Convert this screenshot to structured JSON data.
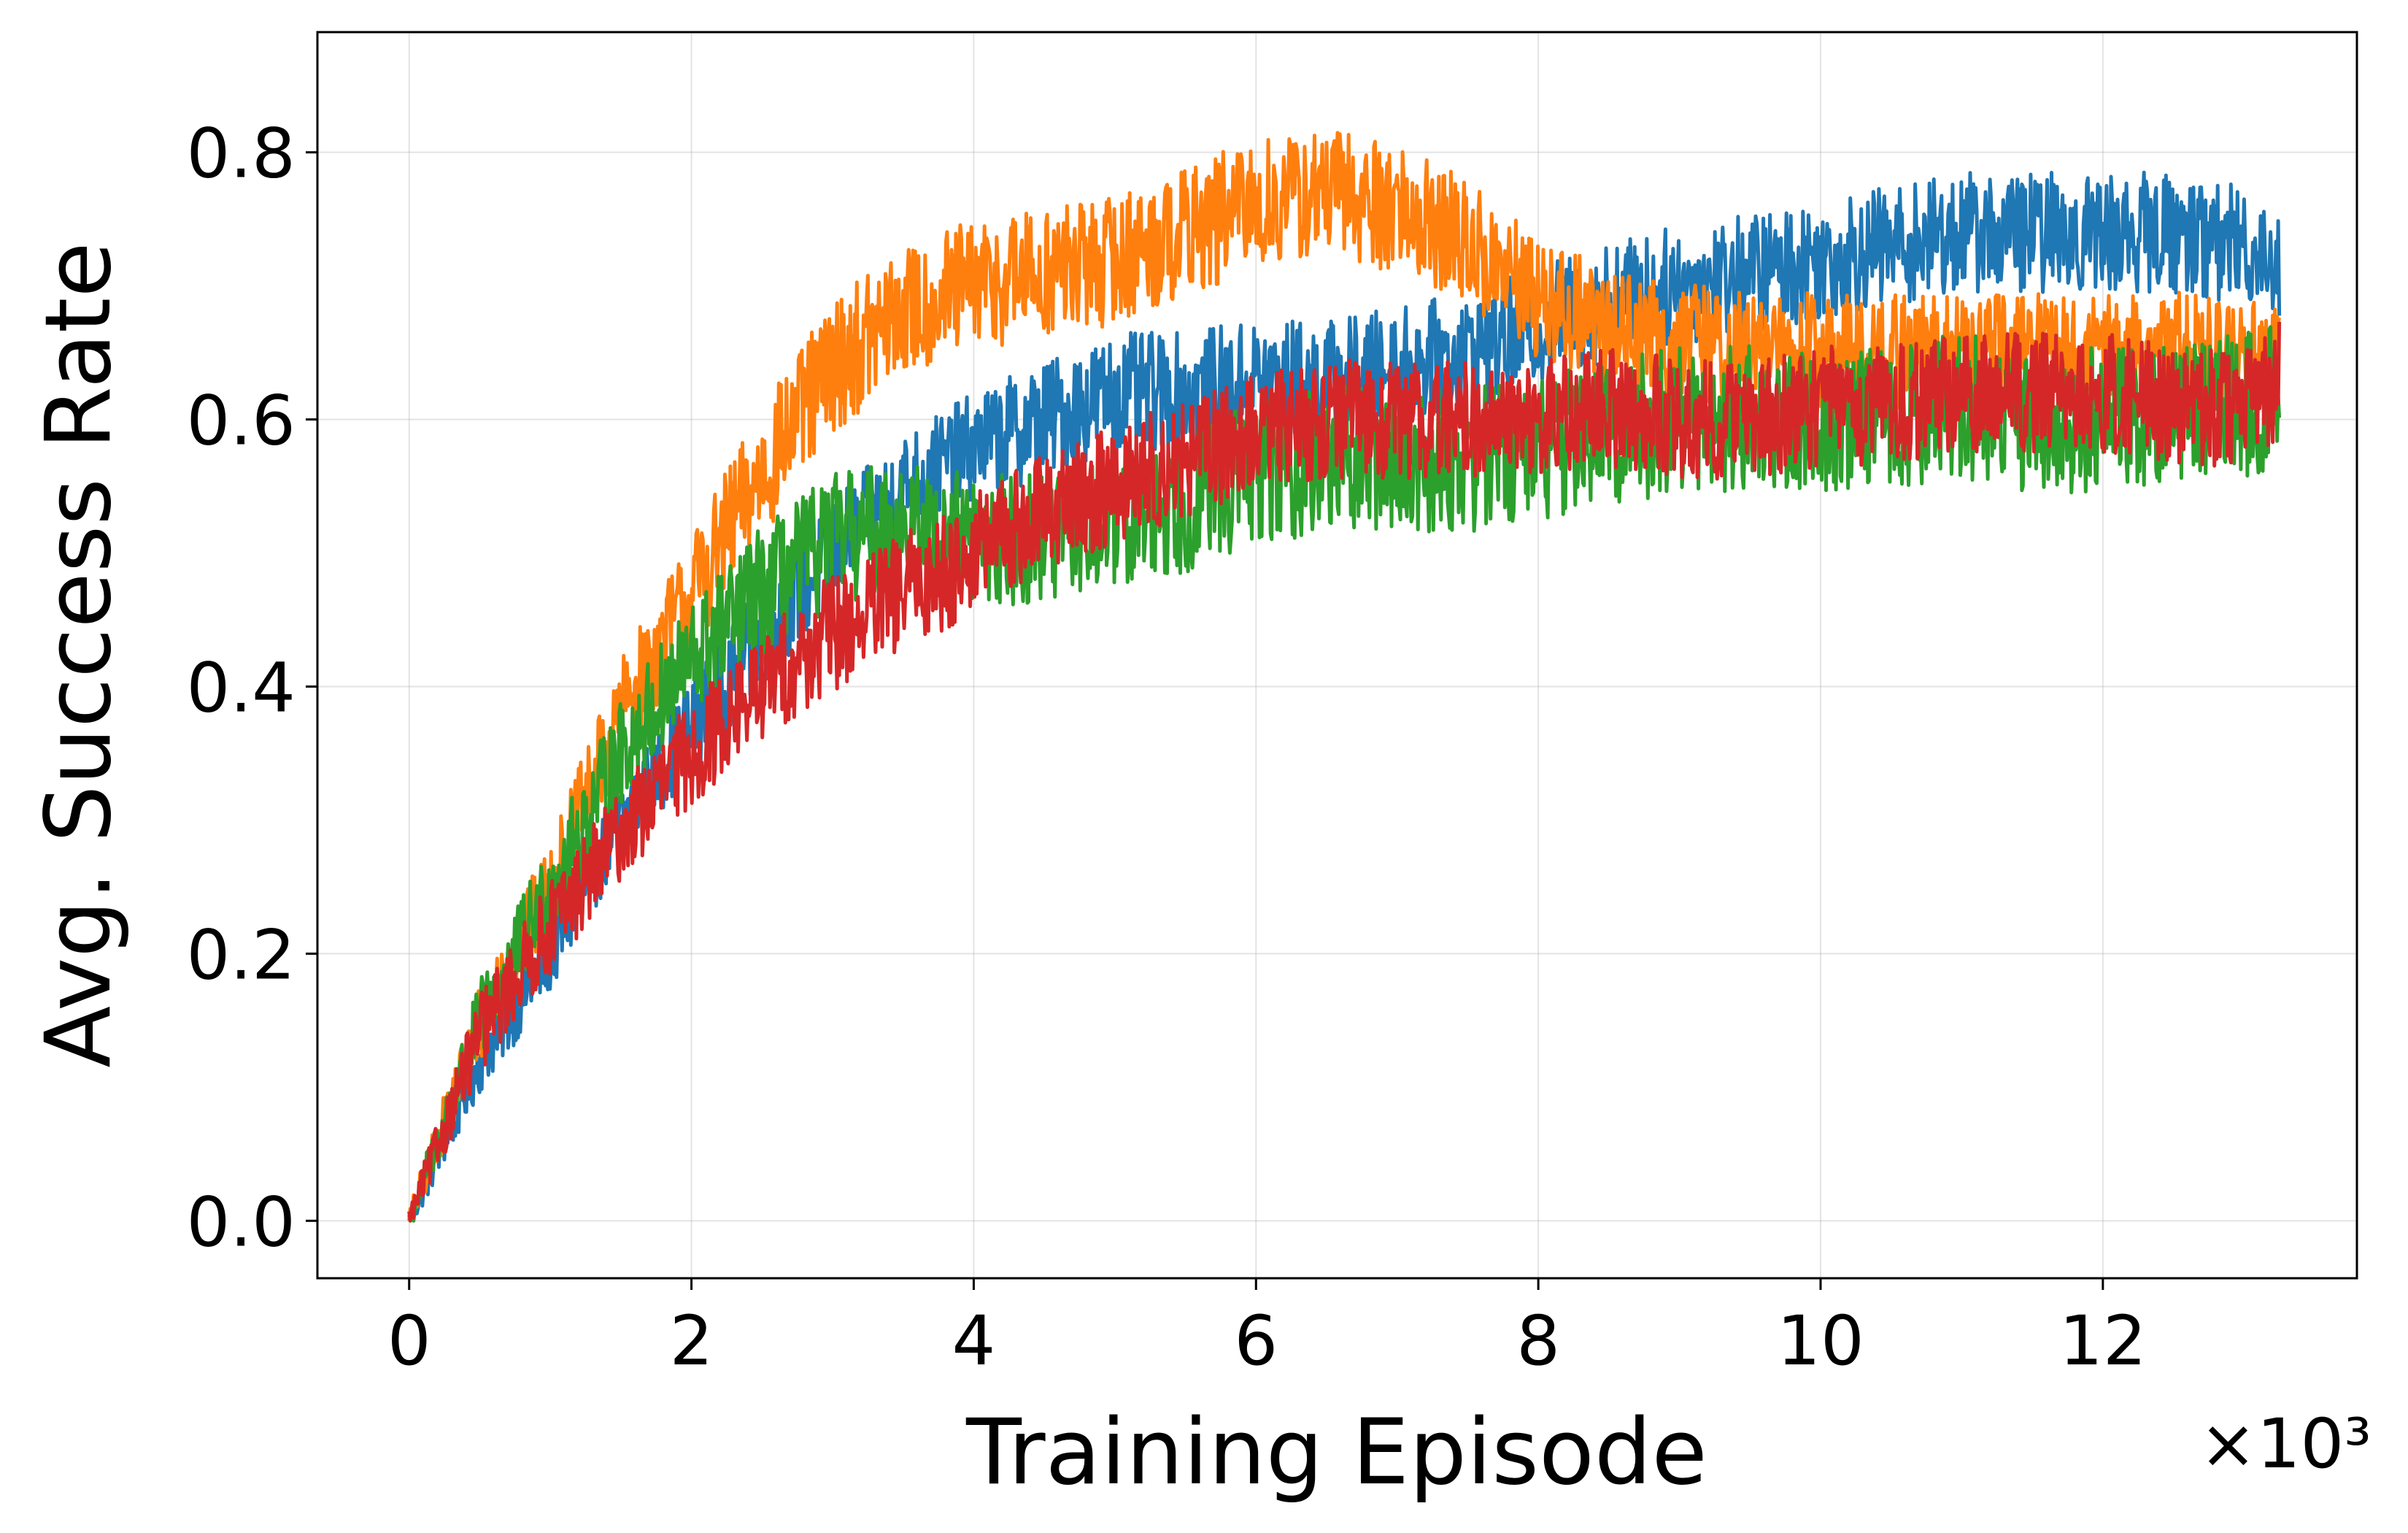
{
  "chart_data": {
    "type": "line",
    "xlabel": "Training Episode",
    "ylabel": "Avg. Success Rate",
    "x_offset_label": "×10³",
    "xlim": [
      -0.65,
      13.8
    ],
    "ylim": [
      -0.043,
      0.89
    ],
    "xticks": [
      0,
      2,
      4,
      6,
      8,
      10,
      12
    ],
    "xtick_labels": [
      "0",
      "2",
      "4",
      "6",
      "8",
      "10",
      "12"
    ],
    "yticks": [
      0.0,
      0.2,
      0.4,
      0.6,
      0.8
    ],
    "ytick_labels": [
      "0.0",
      "0.2",
      "0.4",
      "0.6",
      "0.8"
    ],
    "grid": true,
    "legend": "none",
    "series": [
      {
        "color": "#1f77b4",
        "x": [
          0,
          0.5,
          1,
          1.5,
          2,
          2.5,
          3,
          3.5,
          4,
          4.5,
          5,
          5.5,
          6,
          6.5,
          7,
          7.5,
          8,
          8.5,
          9,
          9.5,
          10,
          10.5,
          11,
          11.5,
          12,
          12.5,
          13,
          13.25
        ],
        "y": [
          0.0,
          0.12,
          0.2,
          0.3,
          0.37,
          0.44,
          0.5,
          0.55,
          0.58,
          0.6,
          0.62,
          0.62,
          0.63,
          0.63,
          0.64,
          0.65,
          0.67,
          0.69,
          0.7,
          0.71,
          0.72,
          0.73,
          0.74,
          0.74,
          0.74,
          0.74,
          0.73,
          0.72
        ],
        "amp": [
          0.01,
          0.025,
          0.03,
          0.03,
          0.035,
          0.04,
          0.04,
          0.04,
          0.04,
          0.045,
          0.045,
          0.045,
          0.045,
          0.045,
          0.045,
          0.045,
          0.045,
          0.045,
          0.045,
          0.045,
          0.045,
          0.045,
          0.045,
          0.045,
          0.045,
          0.045,
          0.045,
          0.045
        ]
      },
      {
        "color": "#ff7f0e",
        "x": [
          0,
          0.5,
          1,
          1.5,
          2,
          2.5,
          3,
          3.5,
          4,
          4.5,
          5,
          5.5,
          6,
          6.5,
          7,
          7.5,
          8,
          8.5,
          9,
          9.5,
          10,
          10.5,
          11,
          11.5,
          12,
          12.5,
          13,
          13.25
        ],
        "y": [
          0.0,
          0.15,
          0.25,
          0.38,
          0.47,
          0.56,
          0.64,
          0.68,
          0.7,
          0.71,
          0.72,
          0.74,
          0.76,
          0.77,
          0.76,
          0.73,
          0.69,
          0.67,
          0.66,
          0.65,
          0.65,
          0.65,
          0.65,
          0.65,
          0.65,
          0.65,
          0.65,
          0.66
        ],
        "amp": [
          0.01,
          0.03,
          0.035,
          0.04,
          0.045,
          0.05,
          0.05,
          0.05,
          0.05,
          0.05,
          0.05,
          0.05,
          0.05,
          0.05,
          0.05,
          0.05,
          0.045,
          0.045,
          0.045,
          0.045,
          0.045,
          0.045,
          0.045,
          0.045,
          0.045,
          0.045,
          0.045,
          0.045
        ]
      },
      {
        "color": "#2ca02c",
        "x": [
          0,
          0.5,
          1,
          1.5,
          2,
          2.5,
          3,
          3.5,
          4,
          4.5,
          5,
          5.5,
          6,
          6.5,
          7,
          7.5,
          8,
          8.5,
          9,
          9.5,
          10,
          10.5,
          11,
          11.5,
          12,
          12.5,
          13,
          13.25
        ],
        "y": [
          0.0,
          0.15,
          0.25,
          0.35,
          0.42,
          0.47,
          0.51,
          0.52,
          0.51,
          0.51,
          0.52,
          0.54,
          0.56,
          0.57,
          0.57,
          0.57,
          0.58,
          0.59,
          0.6,
          0.6,
          0.6,
          0.6,
          0.61,
          0.6,
          0.6,
          0.61,
          0.61,
          0.62
        ],
        "amp": [
          0.01,
          0.03,
          0.035,
          0.04,
          0.045,
          0.05,
          0.05,
          0.05,
          0.05,
          0.05,
          0.05,
          0.055,
          0.055,
          0.055,
          0.055,
          0.055,
          0.055,
          0.055,
          0.055,
          0.055,
          0.055,
          0.055,
          0.055,
          0.055,
          0.055,
          0.055,
          0.055,
          0.055
        ]
      },
      {
        "color": "#d62728",
        "x": [
          0,
          0.5,
          1,
          1.5,
          2,
          2.5,
          3,
          3.5,
          4,
          4.5,
          5,
          5.5,
          6,
          6.5,
          7,
          7.5,
          8,
          8.5,
          9,
          9.5,
          10,
          10.5,
          11,
          11.5,
          12,
          12.5,
          13,
          13.25
        ],
        "y": [
          0.0,
          0.14,
          0.22,
          0.29,
          0.35,
          0.4,
          0.44,
          0.47,
          0.5,
          0.53,
          0.55,
          0.57,
          0.59,
          0.6,
          0.6,
          0.6,
          0.6,
          0.61,
          0.6,
          0.6,
          0.61,
          0.61,
          0.62,
          0.62,
          0.62,
          0.61,
          0.61,
          0.63
        ],
        "amp": [
          0.01,
          0.03,
          0.035,
          0.035,
          0.04,
          0.04,
          0.045,
          0.045,
          0.045,
          0.045,
          0.045,
          0.045,
          0.045,
          0.045,
          0.045,
          0.045,
          0.045,
          0.045,
          0.045,
          0.045,
          0.045,
          0.045,
          0.045,
          0.045,
          0.045,
          0.045,
          0.045,
          0.045
        ]
      }
    ]
  }
}
